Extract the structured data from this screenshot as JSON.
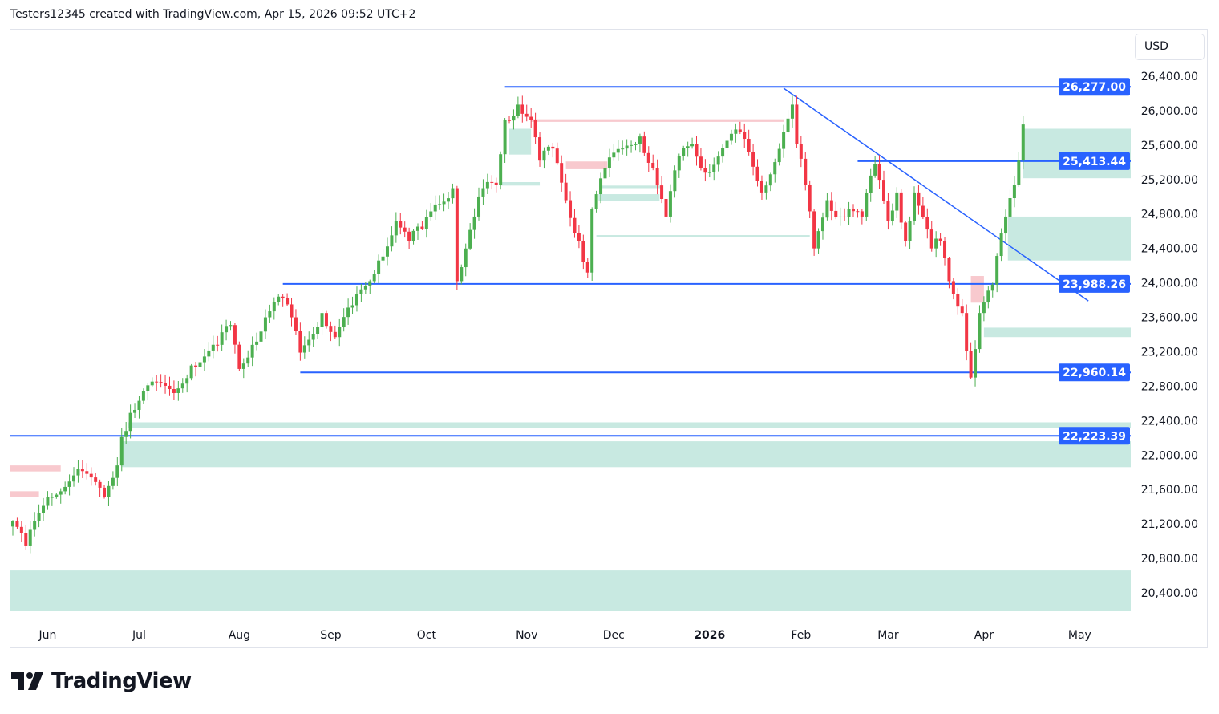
{
  "header": "Testers12345 created with TradingView.com, Apr 15, 2026 09:52 UTC+2",
  "currency_button": "USD",
  "brand": "TradingView",
  "colors": {
    "up": "#4caf50",
    "down": "#f23645",
    "line": "#2962ff",
    "zone_green": "#c8e9e1",
    "zone_red": "#f8c9ce"
  },
  "chart_data": {
    "type": "candlestick",
    "ylim": [
      20400,
      26400
    ],
    "yticks": [
      "26,400.00",
      "26,000.00",
      "25,600.00",
      "25,200.00",
      "24,800.00",
      "24,400.00",
      "24,000.00",
      "23,600.00",
      "23,200.00",
      "22,800.00",
      "22,400.00",
      "22,000.00",
      "21,600.00",
      "21,200.00",
      "20,800.00",
      "20,400.00"
    ],
    "ytick_values": [
      26400,
      26000,
      25600,
      25200,
      24800,
      24400,
      24000,
      23600,
      23200,
      22800,
      22400,
      22000,
      21600,
      21200,
      20800,
      20400
    ],
    "xticks": [
      {
        "label": "Jun",
        "bar": 8
      },
      {
        "label": "Jul",
        "bar": 29
      },
      {
        "label": "Aug",
        "bar": 52
      },
      {
        "label": "Sep",
        "bar": 73
      },
      {
        "label": "Oct",
        "bar": 95
      },
      {
        "label": "Nov",
        "bar": 118
      },
      {
        "label": "Dec",
        "bar": 138
      },
      {
        "label": "2026",
        "bar": 160,
        "bold": true
      },
      {
        "label": "Feb",
        "bar": 181
      },
      {
        "label": "Mar",
        "bar": 201
      },
      {
        "label": "Apr",
        "bar": 223
      },
      {
        "label": "May",
        "bar": 245
      }
    ],
    "close_keypoints": [
      [
        0,
        21230
      ],
      [
        3,
        20950
      ],
      [
        8,
        21510
      ],
      [
        15,
        21835
      ],
      [
        21,
        21510
      ],
      [
        24,
        21880
      ],
      [
        25,
        22210
      ],
      [
        27,
        22490
      ],
      [
        31,
        22810
      ],
      [
        37,
        22720
      ],
      [
        41,
        23040
      ],
      [
        47,
        23280
      ],
      [
        50,
        23510
      ],
      [
        52,
        23000
      ],
      [
        55,
        23280
      ],
      [
        58,
        23600
      ],
      [
        61,
        23840
      ],
      [
        64,
        23600
      ],
      [
        66,
        23190
      ],
      [
        71,
        23650
      ],
      [
        74,
        23370
      ],
      [
        78,
        23740
      ],
      [
        82,
        24020
      ],
      [
        84,
        24260
      ],
      [
        88,
        24720
      ],
      [
        91,
        24490
      ],
      [
        94,
        24630
      ],
      [
        97,
        24910
      ],
      [
        101,
        25100
      ],
      [
        102,
        24020
      ],
      [
        106,
        24770
      ],
      [
        108,
        25100
      ],
      [
        111,
        25140
      ],
      [
        113,
        25890
      ],
      [
        116,
        26070
      ],
      [
        119,
        25890
      ],
      [
        121,
        25420
      ],
      [
        124,
        25560
      ],
      [
        127,
        24960
      ],
      [
        130,
        24490
      ],
      [
        132,
        24120
      ],
      [
        133,
        24860
      ],
      [
        136,
        25330
      ],
      [
        140,
        25560
      ],
      [
        144,
        25700
      ],
      [
        147,
        25330
      ],
      [
        150,
        24770
      ],
      [
        153,
        25470
      ],
      [
        156,
        25610
      ],
      [
        159,
        25280
      ],
      [
        164,
        25650
      ],
      [
        167,
        25750
      ],
      [
        172,
        25050
      ],
      [
        177,
        25750
      ],
      [
        179,
        26070
      ],
      [
        180,
        25610
      ],
      [
        182,
        25140
      ],
      [
        184,
        24400
      ],
      [
        187,
        24960
      ],
      [
        190,
        24770
      ],
      [
        192,
        24860
      ],
      [
        195,
        24770
      ],
      [
        198,
        25380
      ],
      [
        201,
        24720
      ],
      [
        203,
        25050
      ],
      [
        205,
        24490
      ],
      [
        207,
        25050
      ],
      [
        211,
        24400
      ],
      [
        213,
        24490
      ],
      [
        215,
        24020
      ],
      [
        218,
        23650
      ],
      [
        220,
        22900
      ],
      [
        222,
        23650
      ],
      [
        225,
        23980
      ],
      [
        228,
        24770
      ],
      [
        230,
        25140
      ],
      [
        231,
        25420
      ],
      [
        232,
        25840
      ]
    ],
    "levels": [
      {
        "price": 26277.0,
        "label": "26,277.00",
        "from_bar": 113
      },
      {
        "price": 25413.44,
        "label": "25,413.44",
        "from_bar": 194
      },
      {
        "price": 23988.26,
        "label": "23,988.26",
        "from_bar": 62
      },
      {
        "price": 22960.14,
        "label": "22,960.14",
        "from_bar": 66
      },
      {
        "price": 22223.39,
        "label": "22,223.39",
        "from_bar": -1
      }
    ],
    "trendline": {
      "from": [
        177,
        26260
      ],
      "to": [
        247,
        23790
      ]
    },
    "zones": [
      {
        "kind": "green",
        "from_bar": 232,
        "top": 25790,
        "bottom": 25215
      },
      {
        "kind": "green",
        "from_bar": 228.5,
        "top": 24770,
        "bottom": 24260
      },
      {
        "kind": "green",
        "from_bar": 223,
        "top": 23480,
        "bottom": 23370
      },
      {
        "kind": "green",
        "from_bar": 26.5,
        "top": 22380,
        "bottom": 22310
      },
      {
        "kind": "green",
        "from_bar": 25,
        "top": 22160,
        "bottom": 21860
      },
      {
        "kind": "green",
        "from_bar": -1,
        "top": 20660,
        "bottom": 20190
      },
      {
        "kind": "green",
        "from_bar": 134,
        "to_bar": 183,
        "top": 24555,
        "bottom": 24530
      },
      {
        "kind": "green",
        "from_bar": 135,
        "to_bar": 149,
        "top": 25130,
        "bottom": 25100
      },
      {
        "kind": "green",
        "from_bar": 134.5,
        "to_bar": 148.5,
        "top": 25030,
        "bottom": 24950
      },
      {
        "kind": "green",
        "from_bar": 114,
        "to_bar": 119,
        "top": 25790,
        "bottom": 25490
      },
      {
        "kind": "green",
        "from_bar": 112,
        "to_bar": 121,
        "top": 25170,
        "bottom": 25130
      },
      {
        "kind": "red",
        "from_bar": -1,
        "to_bar": 11,
        "top": 21880,
        "bottom": 21810
      },
      {
        "kind": "red",
        "from_bar": -1,
        "to_bar": 6,
        "top": 21580,
        "bottom": 21510
      },
      {
        "kind": "red",
        "from_bar": 119,
        "to_bar": 177,
        "top": 25900,
        "bottom": 25870
      },
      {
        "kind": "red",
        "from_bar": 127,
        "to_bar": 136.5,
        "top": 25410,
        "bottom": 25320
      },
      {
        "kind": "red",
        "from_bar": 220,
        "to_bar": 223,
        "top": 24080,
        "bottom": 23770
      }
    ]
  }
}
